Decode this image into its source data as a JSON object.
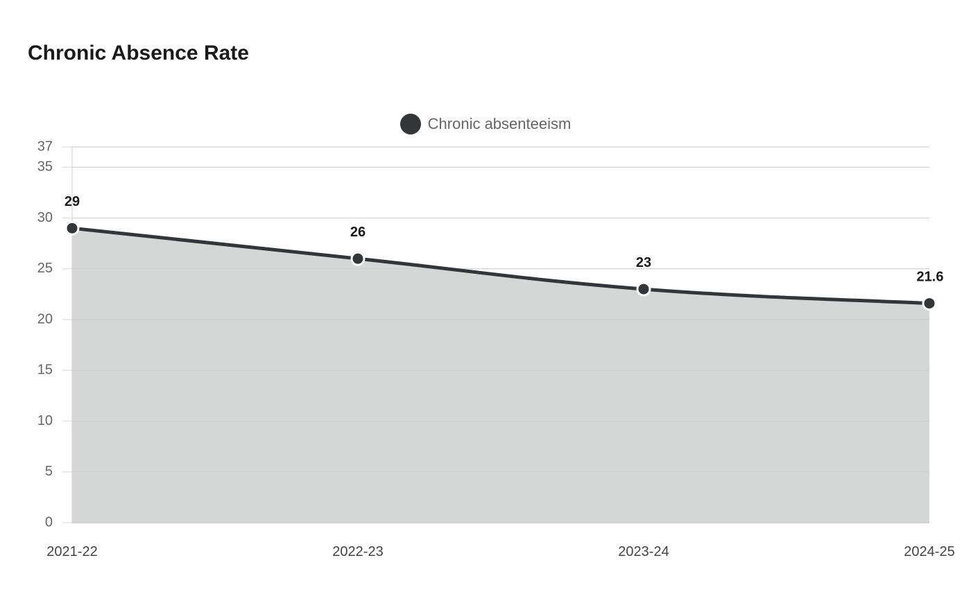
{
  "chart_data": {
    "type": "area",
    "title": "Chronic Absence Rate",
    "categories": [
      "2021-22",
      "2022-23",
      "2023-24",
      "2024-25"
    ],
    "series": [
      {
        "name": "Chronic absenteeism",
        "values": [
          29,
          26,
          23,
          21.6
        ],
        "data_labels": [
          "29",
          "26",
          "23",
          "21.6"
        ]
      }
    ],
    "xlabel": "",
    "ylabel": "",
    "ylim": [
      0,
      37
    ],
    "yticks": [
      0,
      5,
      10,
      15,
      20,
      25,
      30,
      35,
      37
    ],
    "grid": true,
    "legend": "top-center",
    "colors": {
      "line": "#323638",
      "area": "#d5d7d6",
      "marker_stroke": "#ffffff",
      "grid": "#e3e3e3"
    }
  }
}
